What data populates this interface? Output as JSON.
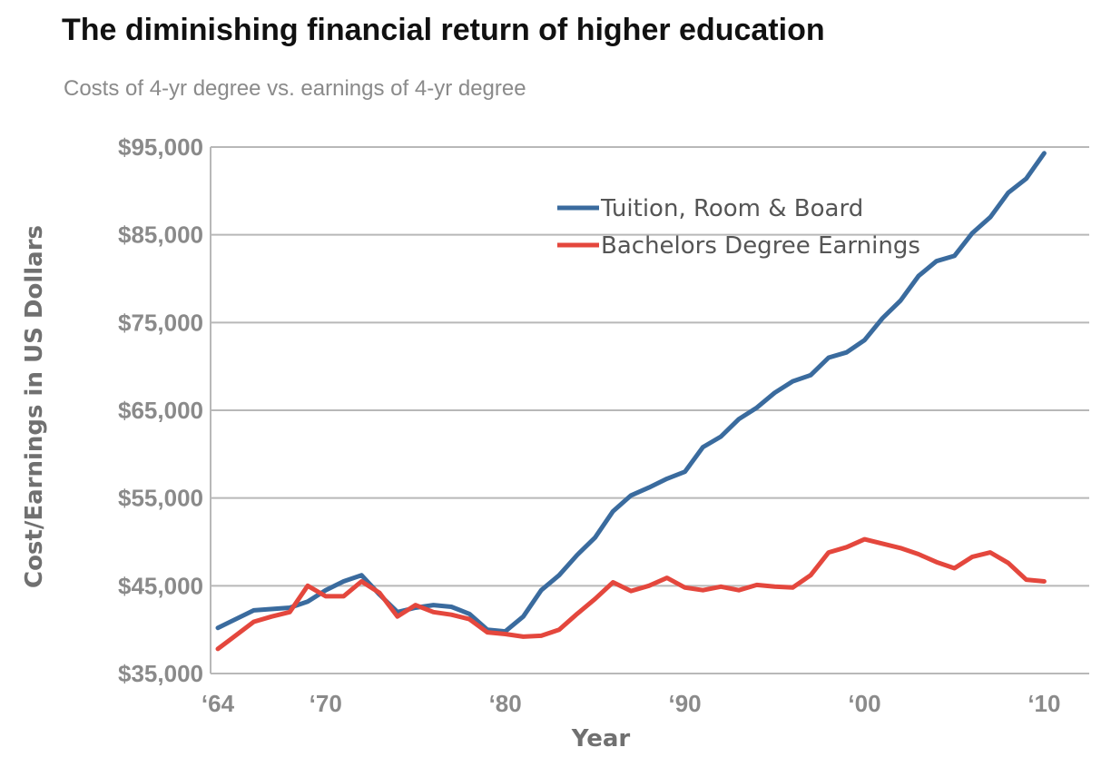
{
  "chart_data": {
    "type": "line",
    "title": "The diminishing financial return of higher education",
    "subtitle": "Costs of 4-yr degree vs. earnings of 4-yr degree",
    "xlabel": "Year",
    "ylabel": "Cost/Earnings in US Dollars",
    "xlim": [
      1964,
      2012
    ],
    "ylim": [
      35000,
      95000
    ],
    "yticks": [
      35000,
      45000,
      55000,
      65000,
      75000,
      85000,
      95000
    ],
    "ytick_labels": [
      "$35,000",
      "$45,000",
      "$55,000",
      "$65,000",
      "$75,000",
      "$85,000",
      "$95,000"
    ],
    "xticks": [
      1964,
      1970,
      1980,
      1990,
      2000,
      2010
    ],
    "xtick_labels": [
      "‘64",
      "‘70",
      "‘80",
      "‘90",
      "‘00",
      "‘10"
    ],
    "grid": "horizontal",
    "legend": "top-center",
    "series": [
      {
        "name": "Tuition, Room & Board",
        "color": "#3a6b9e",
        "points": [
          [
            1964,
            40200
          ],
          [
            1966,
            42200
          ],
          [
            1968,
            42500
          ],
          [
            1969,
            43200
          ],
          [
            1970,
            44500
          ],
          [
            1971,
            45500
          ],
          [
            1972,
            46200
          ],
          [
            1973,
            44000
          ],
          [
            1974,
            42000
          ],
          [
            1975,
            42500
          ],
          [
            1976,
            42800
          ],
          [
            1977,
            42600
          ],
          [
            1978,
            41800
          ],
          [
            1979,
            40000
          ],
          [
            1980,
            39800
          ],
          [
            1981,
            41500
          ],
          [
            1982,
            44500
          ],
          [
            1983,
            46200
          ],
          [
            1984,
            48500
          ],
          [
            1985,
            50500
          ],
          [
            1986,
            53500
          ],
          [
            1987,
            55300
          ],
          [
            1988,
            56200
          ],
          [
            1989,
            57200
          ],
          [
            1990,
            58000
          ],
          [
            1991,
            60800
          ],
          [
            1992,
            62000
          ],
          [
            1993,
            64000
          ],
          [
            1994,
            65300
          ],
          [
            1995,
            67000
          ],
          [
            1996,
            68300
          ],
          [
            1997,
            69000
          ],
          [
            1998,
            71000
          ],
          [
            1999,
            71600
          ],
          [
            2000,
            73000
          ],
          [
            2001,
            75500
          ],
          [
            2002,
            77500
          ],
          [
            2003,
            80300
          ],
          [
            2004,
            82000
          ],
          [
            2005,
            82600
          ],
          [
            2006,
            85200
          ],
          [
            2007,
            87000
          ],
          [
            2008,
            89800
          ],
          [
            2009,
            91400
          ],
          [
            2010,
            94300
          ]
        ]
      },
      {
        "name": "Bachelors Degree Earnings",
        "color": "#e4473d",
        "points": [
          [
            1964,
            37800
          ],
          [
            1966,
            40900
          ],
          [
            1967,
            41500
          ],
          [
            1968,
            42000
          ],
          [
            1969,
            45000
          ],
          [
            1970,
            43800
          ],
          [
            1971,
            43800
          ],
          [
            1972,
            45500
          ],
          [
            1973,
            44200
          ],
          [
            1974,
            41500
          ],
          [
            1975,
            42800
          ],
          [
            1976,
            42000
          ],
          [
            1977,
            41700
          ],
          [
            1978,
            41200
          ],
          [
            1979,
            39700
          ],
          [
            1980,
            39500
          ],
          [
            1981,
            39200
          ],
          [
            1982,
            39300
          ],
          [
            1983,
            40000
          ],
          [
            1984,
            41800
          ],
          [
            1985,
            43500
          ],
          [
            1986,
            45400
          ],
          [
            1987,
            44400
          ],
          [
            1988,
            45000
          ],
          [
            1989,
            45900
          ],
          [
            1990,
            44800
          ],
          [
            1991,
            44500
          ],
          [
            1992,
            44900
          ],
          [
            1993,
            44500
          ],
          [
            1994,
            45100
          ],
          [
            1995,
            44900
          ],
          [
            1996,
            44800
          ],
          [
            1997,
            46200
          ],
          [
            1998,
            48800
          ],
          [
            1999,
            49400
          ],
          [
            2000,
            50300
          ],
          [
            2001,
            49800
          ],
          [
            2002,
            49300
          ],
          [
            2003,
            48600
          ],
          [
            2004,
            47700
          ],
          [
            2005,
            47000
          ],
          [
            2006,
            48300
          ],
          [
            2007,
            48800
          ],
          [
            2008,
            47600
          ],
          [
            2009,
            45700
          ],
          [
            2010,
            45500
          ]
        ]
      }
    ]
  }
}
